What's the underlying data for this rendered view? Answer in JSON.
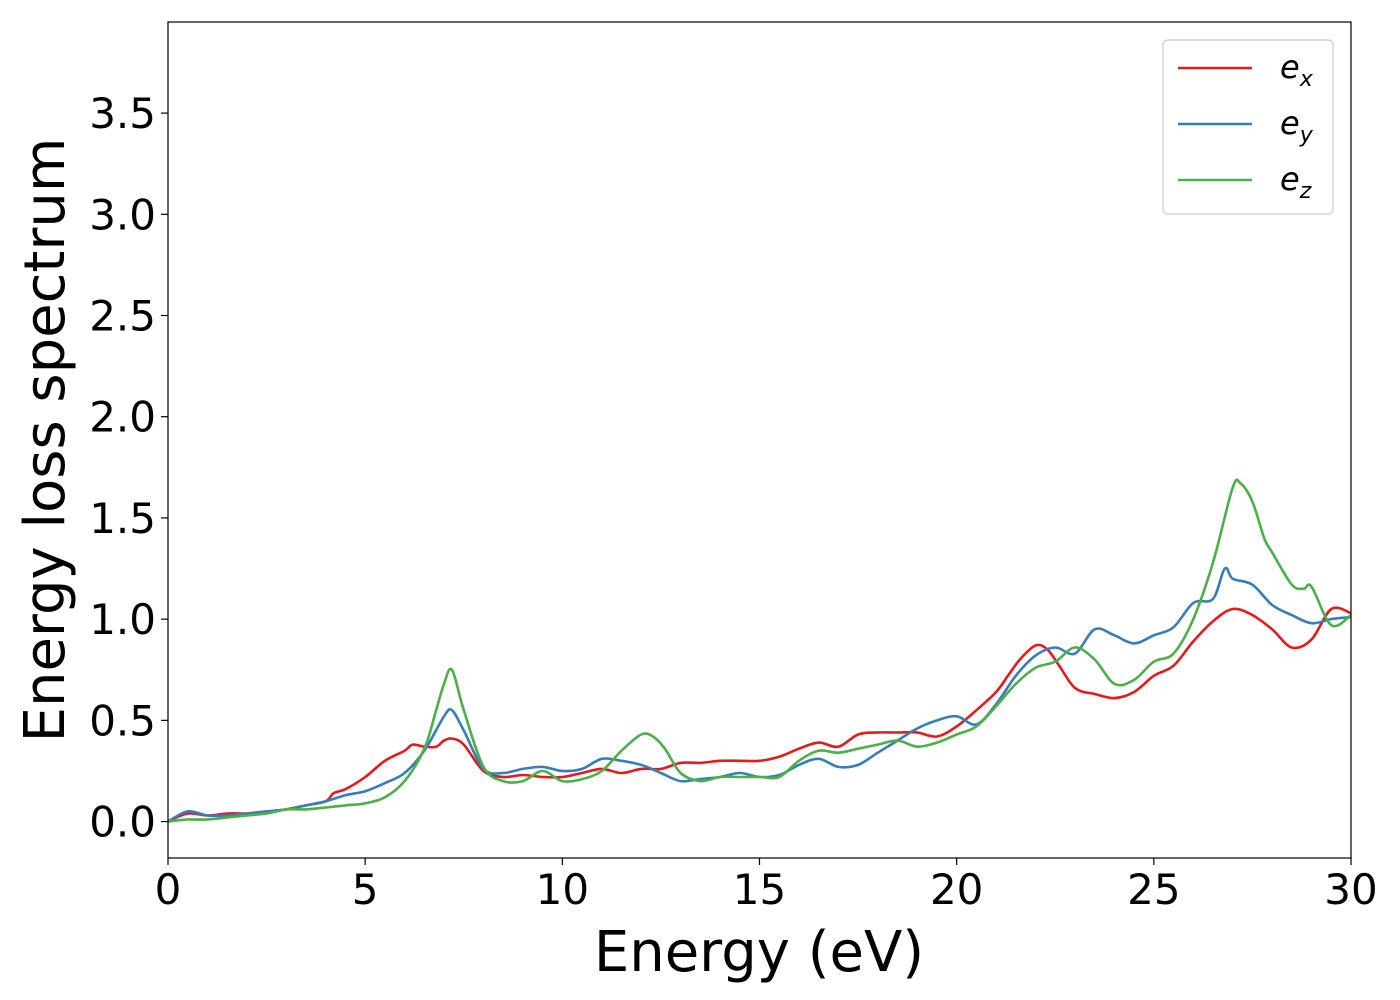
{
  "chart_data": {
    "type": "line",
    "xlabel": "Energy (eV)",
    "ylabel": "Energy loss spectrum",
    "xlim": [
      0,
      30
    ],
    "ylim": [
      -0.18,
      3.95
    ],
    "xticks": [
      0,
      5,
      10,
      15,
      20,
      25,
      30
    ],
    "xtick_labels": [
      "0",
      "5",
      "10",
      "15",
      "20",
      "25",
      "30"
    ],
    "yticks": [
      0.0,
      0.5,
      1.0,
      1.5,
      2.0,
      2.5,
      3.0,
      3.5
    ],
    "ytick_labels": [
      "0.0",
      "0.5",
      "1.0",
      "1.5",
      "2.0",
      "2.5",
      "3.0",
      "3.5"
    ],
    "grid": false,
    "legend_position": "top-right",
    "series": [
      {
        "name": "e_x",
        "legend_base": "e",
        "legend_sub": "x",
        "color": "#e41a1c",
        "x": [
          0,
          0.5,
          1,
          1.5,
          2,
          2.5,
          3,
          3.5,
          4,
          4.2,
          4.5,
          5,
          5.5,
          6,
          6.2,
          6.5,
          6.8,
          7,
          7.2,
          7.5,
          8,
          8.5,
          9,
          9.5,
          10,
          10.5,
          11,
          11.5,
          12,
          12.5,
          13,
          13.5,
          14,
          14.5,
          15,
          15.5,
          16,
          16.5,
          17,
          17.5,
          18,
          18.5,
          19,
          19.5,
          20,
          20.5,
          21,
          21.3,
          21.6,
          22,
          22.3,
          22.6,
          23,
          23.5,
          24,
          24.5,
          25,
          25.5,
          26,
          26.5,
          27,
          27.5,
          28,
          28.5,
          29,
          29.5,
          30
        ],
        "y": [
          0.0,
          0.04,
          0.03,
          0.04,
          0.04,
          0.05,
          0.06,
          0.08,
          0.1,
          0.14,
          0.16,
          0.22,
          0.3,
          0.35,
          0.38,
          0.37,
          0.37,
          0.4,
          0.41,
          0.38,
          0.25,
          0.22,
          0.23,
          0.22,
          0.22,
          0.24,
          0.26,
          0.24,
          0.26,
          0.26,
          0.29,
          0.29,
          0.3,
          0.3,
          0.3,
          0.32,
          0.36,
          0.39,
          0.37,
          0.43,
          0.44,
          0.44,
          0.44,
          0.42,
          0.47,
          0.55,
          0.64,
          0.72,
          0.8,
          0.87,
          0.85,
          0.77,
          0.66,
          0.63,
          0.61,
          0.64,
          0.72,
          0.77,
          0.89,
          0.99,
          1.05,
          1.02,
          0.95,
          0.86,
          0.9,
          1.05,
          1.03
        ]
      },
      {
        "name": "e_y",
        "legend_base": "e",
        "legend_sub": "y",
        "color": "#377eb8",
        "x": [
          0,
          0.5,
          1,
          1.5,
          2,
          2.5,
          3,
          3.5,
          4,
          4.5,
          5,
          5.5,
          6,
          6.5,
          7,
          7.2,
          7.5,
          8,
          8.5,
          9,
          9.5,
          10,
          10.5,
          11,
          11.5,
          12,
          12.5,
          13,
          13.5,
          14,
          14.5,
          15,
          15.5,
          16,
          16.5,
          17,
          17.5,
          18,
          18.5,
          19,
          19.5,
          20,
          20.5,
          21,
          21.5,
          22,
          22.5,
          23,
          23.5,
          24,
          24.5,
          25,
          25.5,
          26,
          26.5,
          26.8,
          27,
          27.5,
          28,
          28.5,
          29,
          29.5,
          30
        ],
        "y": [
          0.0,
          0.05,
          0.03,
          0.03,
          0.04,
          0.05,
          0.06,
          0.08,
          0.1,
          0.13,
          0.15,
          0.19,
          0.24,
          0.35,
          0.52,
          0.55,
          0.45,
          0.26,
          0.24,
          0.26,
          0.27,
          0.25,
          0.26,
          0.31,
          0.3,
          0.28,
          0.24,
          0.2,
          0.21,
          0.22,
          0.24,
          0.22,
          0.23,
          0.28,
          0.31,
          0.27,
          0.28,
          0.34,
          0.4,
          0.46,
          0.5,
          0.52,
          0.48,
          0.58,
          0.72,
          0.82,
          0.86,
          0.83,
          0.95,
          0.92,
          0.88,
          0.92,
          0.96,
          1.08,
          1.1,
          1.25,
          1.2,
          1.17,
          1.07,
          1.02,
          0.98,
          1.0,
          1.01
        ]
      },
      {
        "name": "e_z",
        "legend_base": "e",
        "legend_sub": "z",
        "color": "#4daf4a",
        "x": [
          0,
          0.5,
          1,
          1.5,
          2,
          2.5,
          3,
          3.5,
          4,
          4.5,
          5,
          5.5,
          6,
          6.5,
          6.8,
          7,
          7.2,
          7.5,
          8,
          8.5,
          9,
          9.5,
          10,
          10.5,
          11,
          11.5,
          12,
          12.3,
          12.6,
          13,
          13.5,
          14,
          14.5,
          15,
          15.5,
          16,
          16.5,
          17,
          17.5,
          18,
          18.5,
          19,
          19.5,
          20,
          20.5,
          21,
          21.5,
          22,
          22.5,
          23,
          23.5,
          24,
          24.5,
          25,
          25.5,
          26,
          26.5,
          27,
          27.2,
          27.5,
          27.8,
          28,
          28.5,
          28.8,
          29,
          29.5,
          30
        ],
        "y": [
          0.0,
          0.01,
          0.01,
          0.02,
          0.03,
          0.04,
          0.06,
          0.06,
          0.07,
          0.08,
          0.09,
          0.12,
          0.2,
          0.36,
          0.55,
          0.68,
          0.75,
          0.55,
          0.27,
          0.2,
          0.2,
          0.25,
          0.2,
          0.21,
          0.25,
          0.35,
          0.43,
          0.42,
          0.36,
          0.24,
          0.2,
          0.22,
          0.22,
          0.22,
          0.22,
          0.3,
          0.35,
          0.34,
          0.36,
          0.38,
          0.4,
          0.37,
          0.39,
          0.43,
          0.47,
          0.57,
          0.68,
          0.76,
          0.79,
          0.86,
          0.8,
          0.68,
          0.7,
          0.79,
          0.83,
          1.0,
          1.28,
          1.65,
          1.67,
          1.58,
          1.4,
          1.33,
          1.17,
          1.15,
          1.16,
          0.97,
          1.02
        ]
      }
    ]
  }
}
